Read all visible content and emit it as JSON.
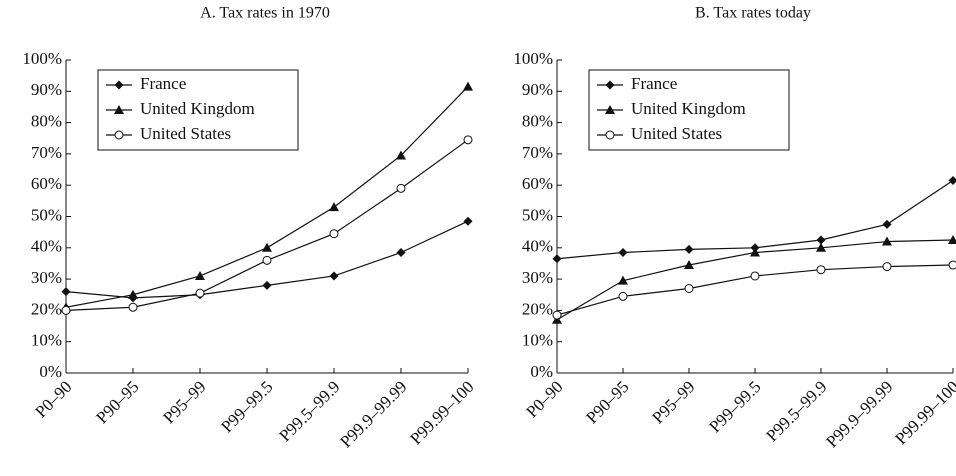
{
  "chart_data": [
    {
      "type": "line",
      "title": "A.  Tax rates in 1970",
      "categories": [
        "P0–90",
        "P90–95",
        "P95–99",
        "P99–99.5",
        "P99.5–99.9",
        "P99.9–99.99",
        "P99.99–100"
      ],
      "series": [
        {
          "name": "France",
          "color": "#111111",
          "marker": "diamond",
          "values": [
            26,
            24,
            25,
            28,
            31,
            38.5,
            48.5
          ]
        },
        {
          "name": "United Kingdom",
          "color": "#111111",
          "marker": "triangle",
          "values": [
            21,
            25,
            31,
            40,
            53,
            69.5,
            91.5
          ]
        },
        {
          "name": "United States",
          "color": "#111111",
          "marker": "open-circle",
          "values": [
            20,
            21,
            25.5,
            36,
            44.5,
            59,
            74.5
          ]
        }
      ],
      "ylim": [
        0,
        100
      ],
      "yticks": [
        {
          "value": 0,
          "label": "0%"
        },
        {
          "value": 10,
          "label": "10%"
        },
        {
          "value": 20,
          "label": "20%"
        },
        {
          "value": 30,
          "label": "30%"
        },
        {
          "value": 40,
          "label": "40%"
        },
        {
          "value": 50,
          "label": "50%"
        },
        {
          "value": 60,
          "label": "60%"
        },
        {
          "value": 70,
          "label": "70%"
        },
        {
          "value": 80,
          "label": "80%"
        },
        {
          "value": 90,
          "label": "90%"
        },
        {
          "value": 100,
          "label": "100%"
        }
      ],
      "grid": false,
      "legend": "upper left"
    },
    {
      "type": "line",
      "title": "B.  Tax rates today",
      "categories": [
        "P0–90",
        "P90–95",
        "P95–99",
        "P99–99.5",
        "P99.5–99.9",
        "P99.9–99.99",
        "P99.99–100"
      ],
      "series": [
        {
          "name": "France",
          "color": "#111111",
          "marker": "diamond",
          "values": [
            36.5,
            38.5,
            39.5,
            40,
            42.5,
            47.5,
            61.5
          ]
        },
        {
          "name": "United Kingdom",
          "color": "#111111",
          "marker": "triangle",
          "values": [
            17,
            29.5,
            34.5,
            38.5,
            40,
            42,
            42.5
          ]
        },
        {
          "name": "United States",
          "color": "#111111",
          "marker": "open-circle",
          "values": [
            18.5,
            24.5,
            27,
            31,
            33,
            34,
            34.5
          ]
        }
      ],
      "ylim": [
        0,
        100
      ],
      "yticks": [
        {
          "value": 0,
          "label": "0%"
        },
        {
          "value": 10,
          "label": "10%"
        },
        {
          "value": 20,
          "label": "20%"
        },
        {
          "value": 30,
          "label": "30%"
        },
        {
          "value": 40,
          "label": "40%"
        },
        {
          "value": 50,
          "label": "50%"
        },
        {
          "value": 60,
          "label": "60%"
        },
        {
          "value": 70,
          "label": "70%"
        },
        {
          "value": 80,
          "label": "80%"
        },
        {
          "value": 90,
          "label": "90%"
        },
        {
          "value": 100,
          "label": "100%"
        }
      ],
      "grid": false,
      "legend": "upper left"
    }
  ]
}
